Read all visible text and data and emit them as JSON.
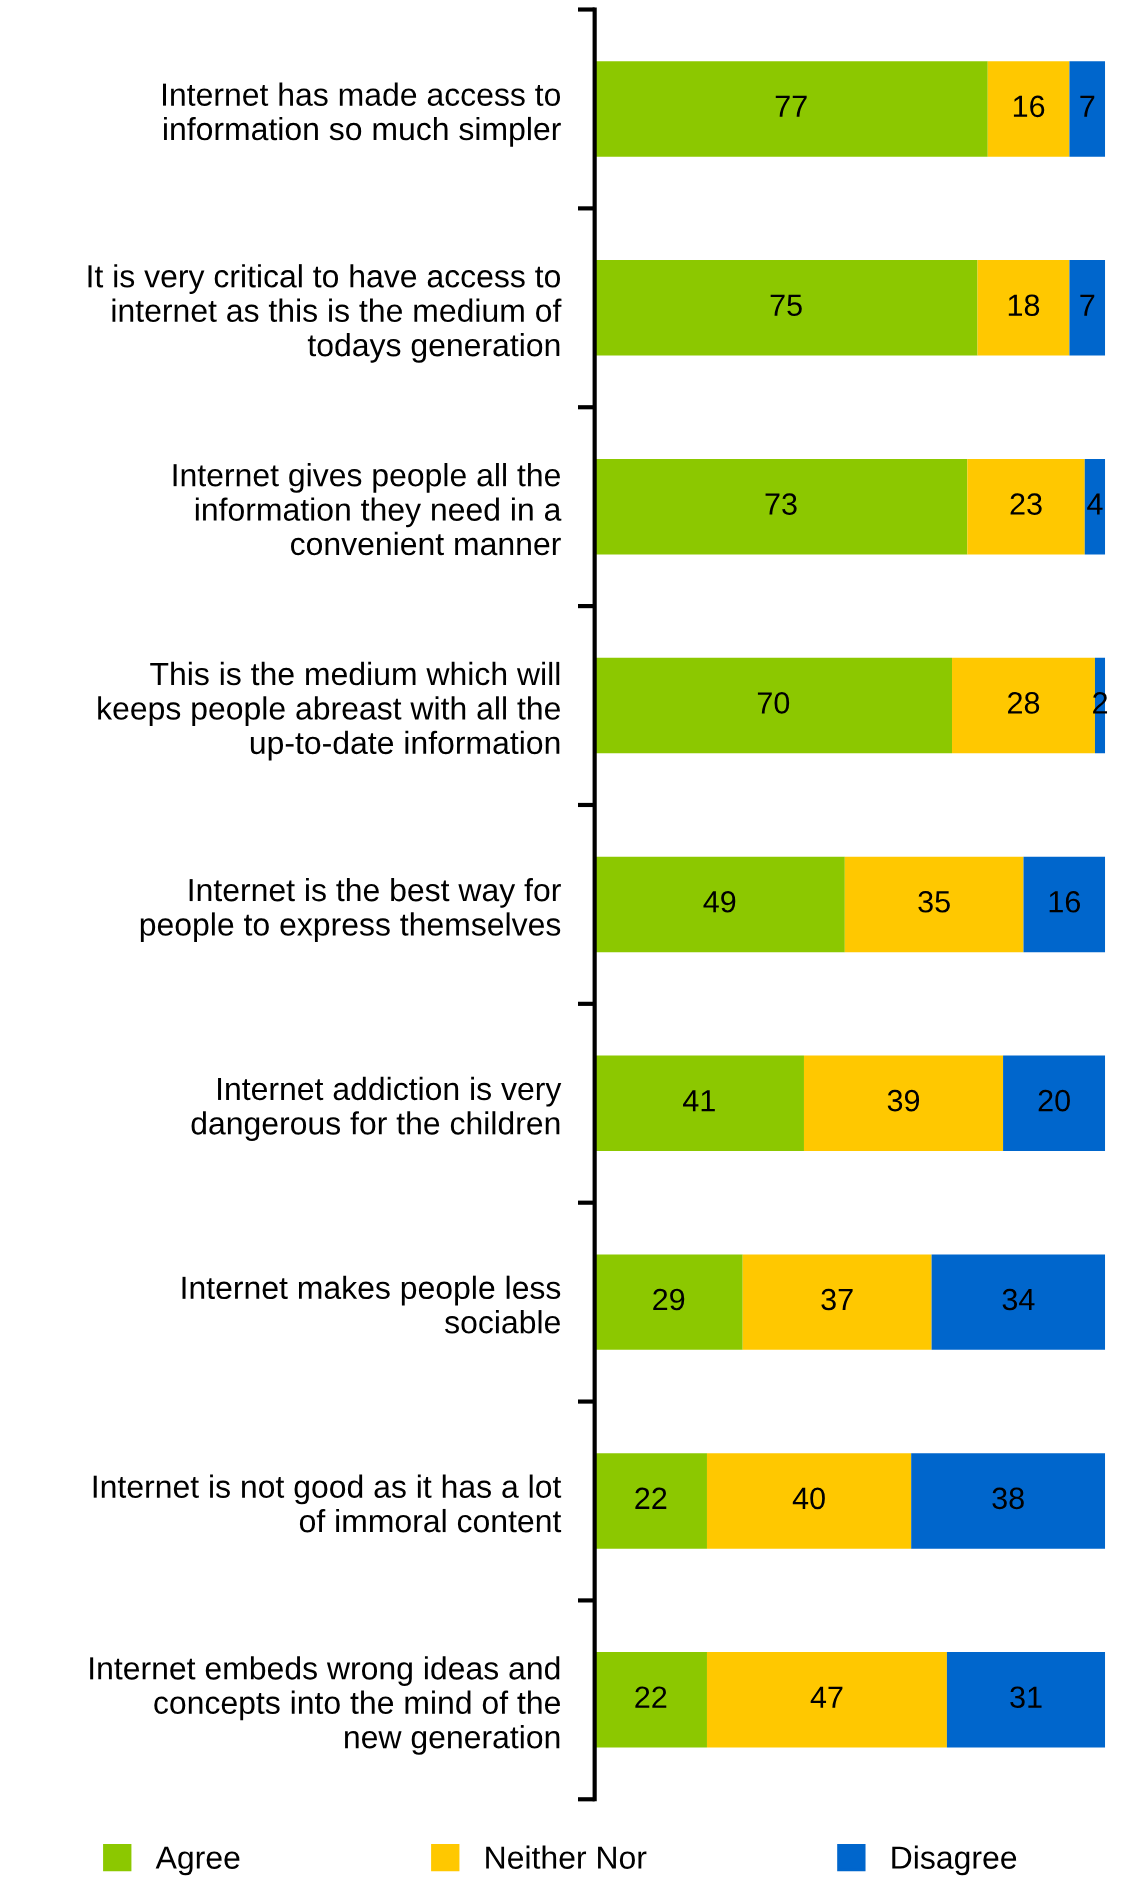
{
  "chart_data": {
    "type": "bar",
    "orientation": "horizontal",
    "stacked": true,
    "data_labels": true,
    "legend": "bottom",
    "grid": false,
    "tick_labels": "y",
    "xlim": [
      0,
      100
    ],
    "categories": [
      "Internet has made access to\ninformation so much simpler",
      "It is very critical to have access to\ninternet as this is the medium of\ntodays generation",
      "Internet gives people all the\ninformation they need in a\nconvenient manner",
      "This is the medium which will\nkeeps people abreast with all the\nup-to-date information",
      "Internet is the best way for\npeople to express themselves",
      "Internet addiction is very\ndangerous for the children",
      "Internet makes people less\nsociable",
      "Internet is not good as it has a lot\nof immoral content",
      "Internet embeds wrong ideas and\nconcepts into the mind of the\nnew generation"
    ],
    "series": [
      {
        "name": "Agree",
        "color": "#8cc800",
        "values": [
          77,
          75,
          73,
          70,
          49,
          41,
          29,
          22,
          22
        ]
      },
      {
        "name": "Neither Nor",
        "color": "#ffc800",
        "values": [
          16,
          18,
          23,
          28,
          35,
          39,
          37,
          40,
          47
        ]
      },
      {
        "name": "Disagree",
        "color": "#0066cc",
        "values": [
          7,
          7,
          4,
          2,
          16,
          20,
          34,
          38,
          31
        ]
      }
    ]
  }
}
